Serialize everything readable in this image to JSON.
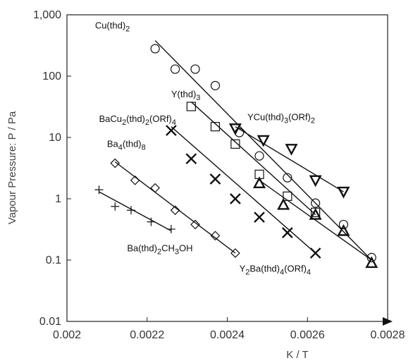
{
  "chart_data": {
    "type": "scatter",
    "title": "",
    "xlabel": "K / T",
    "ylabel": "Vapour Pressure: P / Pa",
    "xlim": [
      0.002,
      0.0028
    ],
    "ylim": [
      0.01,
      1000
    ],
    "yscale": "log",
    "x_ticks": [
      "0.002",
      "0.0022",
      "0.0024",
      "0.0026",
      "0.0028"
    ],
    "y_ticks": [
      "0.01",
      "0.1",
      "1",
      "10",
      "100",
      "1,000"
    ],
    "grid": false,
    "series": [
      {
        "name": "Cu(thd)2",
        "marker": "circle",
        "points": [
          [
            0.00222,
            280
          ],
          [
            0.00227,
            130
          ],
          [
            0.00232,
            130
          ],
          [
            0.00237,
            70
          ],
          [
            0.00243,
            12
          ],
          [
            0.00248,
            5
          ],
          [
            0.00255,
            2.2
          ],
          [
            0.00262,
            0.85
          ],
          [
            0.00269,
            0.38
          ],
          [
            0.00276,
            0.11
          ]
        ],
        "fit": [
          [
            0.00222,
            380
          ],
          [
            0.00276,
            0.1
          ]
        ]
      },
      {
        "name": "Y(thd)3",
        "marker": "square",
        "points": [
          [
            0.00231,
            32
          ],
          [
            0.00237,
            15
          ],
          [
            0.00242,
            7.8
          ],
          [
            0.00248,
            2.5
          ],
          [
            0.00255,
            1.1
          ],
          [
            0.00262,
            0.6
          ]
        ],
        "fit": [
          [
            0.00231,
            38
          ],
          [
            0.00262,
            0.55
          ]
        ]
      },
      {
        "name": "YCu(thd)3(ORf)2",
        "marker": "triangle-down",
        "points": [
          [
            0.00242,
            14
          ],
          [
            0.00249,
            9
          ],
          [
            0.00256,
            6.5
          ],
          [
            0.00262,
            2.0
          ],
          [
            0.00269,
            1.3
          ]
        ],
        "fit": [
          [
            0.00242,
            15
          ],
          [
            0.00269,
            1.3
          ]
        ]
      },
      {
        "name": "BaCu2(thd)2(ORf)4",
        "marker": "x",
        "points": [
          [
            0.00226,
            13
          ],
          [
            0.00231,
            4.5
          ],
          [
            0.00237,
            2.1
          ],
          [
            0.00242,
            1.0
          ],
          [
            0.00248,
            0.5
          ],
          [
            0.00255,
            0.28
          ],
          [
            0.00262,
            0.13
          ]
        ],
        "fit": [
          [
            0.00226,
            15
          ],
          [
            0.00262,
            0.13
          ]
        ]
      },
      {
        "name": "Ba4(thd)8",
        "marker": "diamond",
        "points": [
          [
            0.00212,
            3.8
          ],
          [
            0.00217,
            2.0
          ],
          [
            0.00222,
            1.5
          ],
          [
            0.00227,
            0.65
          ],
          [
            0.00232,
            0.38
          ],
          [
            0.00237,
            0.25
          ],
          [
            0.00242,
            0.13
          ]
        ],
        "fit": [
          [
            0.00212,
            4.0
          ],
          [
            0.00242,
            0.13
          ]
        ]
      },
      {
        "name": "Ba(thd)2CH3OH",
        "marker": "plus",
        "points": [
          [
            0.00208,
            1.4
          ],
          [
            0.00212,
            0.75
          ],
          [
            0.00216,
            0.65
          ],
          [
            0.00221,
            0.42
          ],
          [
            0.00226,
            0.32
          ]
        ],
        "fit": [
          [
            0.00208,
            1.3
          ],
          [
            0.00226,
            0.3
          ]
        ]
      },
      {
        "name": "Y2Ba(thd)4(ORf)4",
        "marker": "triangle-up",
        "points": [
          [
            0.00248,
            1.8
          ],
          [
            0.00254,
            0.8
          ],
          [
            0.00262,
            0.55
          ],
          [
            0.00269,
            0.3
          ],
          [
            0.00276,
            0.09
          ]
        ],
        "fit": [
          [
            0.00248,
            2.0
          ],
          [
            0.00276,
            0.1
          ]
        ]
      }
    ],
    "annotations": [
      {
        "text": "Cu(thd)2",
        "at": [
          0.00207,
          600
        ]
      },
      {
        "text": "Y(thd)3",
        "at": [
          0.00226,
          45
        ]
      },
      {
        "text": "BaCu2(thd)2(ORf)4",
        "at": [
          0.00208,
          18
        ]
      },
      {
        "text": "YCu(thd)3(ORf)2",
        "at": [
          0.00245,
          19
        ]
      },
      {
        "text": "Ba4(thd)8",
        "at": [
          0.0021,
          7
        ]
      },
      {
        "text": "Ba(thd)2CH3OH",
        "at": [
          0.00215,
          0.14
        ]
      },
      {
        "text": "Y2Ba(thd)4(ORf)4",
        "at": [
          0.00243,
          0.065
        ]
      }
    ]
  }
}
